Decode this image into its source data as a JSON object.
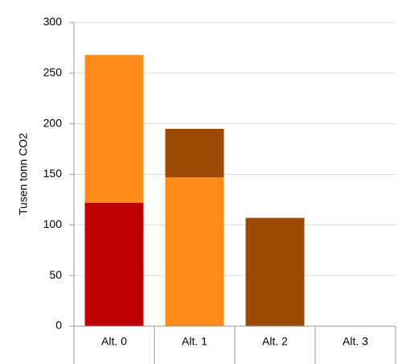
{
  "chart_data": {
    "type": "bar",
    "stacked": true,
    "y_label": "Tusen tonn CO2",
    "categories": [
      "Alt. 0",
      "Alt. 1",
      "Alt. 2",
      "Alt. 3"
    ],
    "series": [
      {
        "color": "#c00000",
        "values": [
          122,
          null,
          null,
          null
        ]
      },
      {
        "color": "#ff8c1a",
        "values": [
          146,
          147,
          null,
          null
        ]
      },
      {
        "color": "#9c4a06",
        "values": [
          null,
          48,
          107,
          null
        ]
      }
    ],
    "ylim": [
      0,
      300
    ],
    "yticks": [
      0,
      50,
      100,
      150,
      200,
      250,
      300
    ],
    "grid": true
  }
}
